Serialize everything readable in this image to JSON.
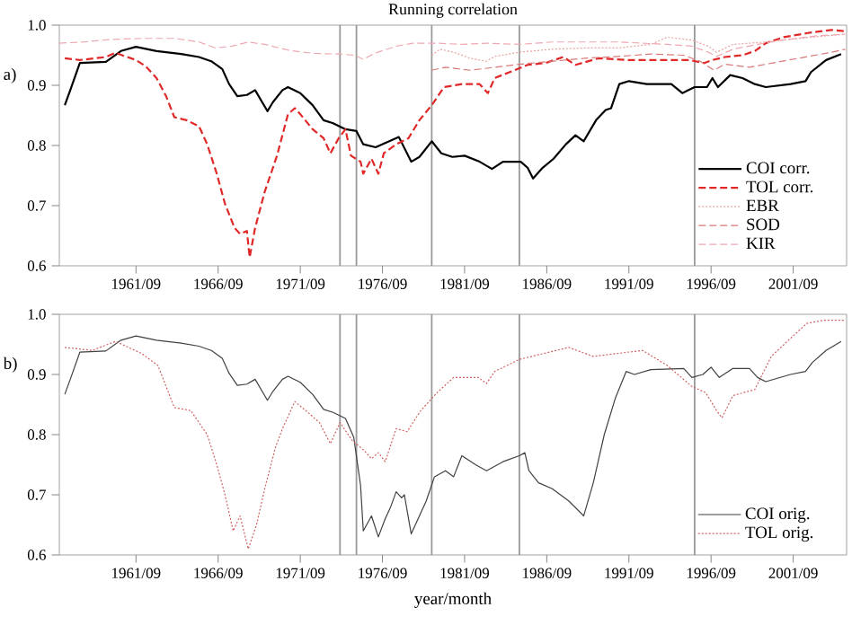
{
  "chart_data": [
    {
      "type": "line",
      "title": "Running correlation",
      "annotations": [
        "a)"
      ],
      "xlim": [
        "1957-01",
        "2004-12"
      ],
      "ylim": [
        0.6,
        1.0
      ],
      "xticks": [
        {
          "value": "1961-09",
          "label": "1961/09"
        },
        {
          "value": "1966-09",
          "label": "1966/09"
        },
        {
          "value": "1971-09",
          "label": "1971/09"
        },
        {
          "value": "1976-09",
          "label": "1976/09"
        },
        {
          "value": "1981-09",
          "label": "1981/09"
        },
        {
          "value": "1986-09",
          "label": "1986/09"
        },
        {
          "value": "1991-09",
          "label": "1991/09"
        },
        {
          "value": "1996-09",
          "label": "1996/09"
        },
        {
          "value": "2001-09",
          "label": "2001/09"
        }
      ],
      "yticks": [
        0.6,
        0.7,
        0.8,
        0.9,
        {
          "value": 1.0,
          "label": "1.0"
        }
      ],
      "legend": "bottom right",
      "ref_lines": [
        {
          "axis": "x",
          "value": "1974-02",
          "color": "#999999"
        },
        {
          "axis": "x",
          "value": "1975-02",
          "color": "#999999"
        },
        {
          "axis": "x",
          "value": "1979-09",
          "color": "#999999"
        },
        {
          "axis": "x",
          "value": "1985-01",
          "color": "#999999"
        },
        {
          "axis": "x",
          "value": "1995-09",
          "color": "#999999"
        }
      ],
      "series": [
        {
          "name": "COI corr.",
          "color": "#000000",
          "line_style": "solid",
          "x": [
            "1957-05",
            "1957-09",
            "1958-04",
            "1959-11",
            "1960-10",
            "1961-09",
            "1962-12",
            "1964-06",
            "1965-07",
            "1966-04",
            "1966-12",
            "1967-05",
            "1967-11",
            "1968-06",
            "1968-12",
            "1969-09",
            "1970-01",
            "1970-08",
            "1970-12",
            "1971-09",
            "1972-06",
            "1973-02",
            "1973-09",
            "1974-06",
            "1975-02",
            "1975-07",
            "1976-04",
            "1977-02",
            "1977-09",
            "1978-06",
            "1978-12",
            "1979-09",
            "1980-04",
            "1980-12",
            "1981-09",
            "1982-08",
            "1983-05",
            "1984-01",
            "1985-02",
            "1985-07",
            "1985-11",
            "1986-06",
            "1987-02",
            "1987-11",
            "1988-06",
            "1988-12",
            "1989-09",
            "1990-04",
            "1990-08",
            "1991-02",
            "1991-09",
            "1992-10",
            "1994-04",
            "1994-12",
            "1995-09",
            "1996-06",
            "1996-10",
            "1997-02",
            "1997-11",
            "1998-08",
            "1999-05",
            "2000-01",
            "2001-07",
            "2002-06",
            "2002-10",
            "2003-09",
            "2004-08"
          ],
          "values": [
            0.867,
            0.892,
            0.937,
            0.939,
            0.957,
            0.964,
            0.957,
            0.952,
            0.947,
            0.94,
            0.927,
            0.902,
            0.882,
            0.884,
            0.892,
            0.857,
            0.872,
            0.892,
            0.897,
            0.887,
            0.867,
            0.842,
            0.837,
            0.827,
            0.824,
            0.802,
            0.797,
            0.807,
            0.814,
            0.773,
            0.781,
            0.807,
            0.787,
            0.781,
            0.783,
            0.773,
            0.761,
            0.773,
            0.773,
            0.763,
            0.745,
            0.763,
            0.778,
            0.802,
            0.817,
            0.807,
            0.842,
            0.859,
            0.862,
            0.902,
            0.907,
            0.902,
            0.902,
            0.887,
            0.897,
            0.897,
            0.912,
            0.897,
            0.917,
            0.912,
            0.902,
            0.897,
            0.902,
            0.907,
            0.922,
            0.942,
            0.952
          ]
        },
        {
          "name": "TOL corr.",
          "color": "#e02828",
          "line_style": "dashed",
          "x": [
            "1957-05",
            "1958-04",
            "1959-11",
            "1960-06",
            "1961-09",
            "1962-04",
            "1962-12",
            "1963-07",
            "1964-01",
            "1964-10",
            "1965-07",
            "1966-01",
            "1966-08",
            "1967-02",
            "1967-09",
            "1968-01",
            "1968-06",
            "1968-08",
            "1968-12",
            "1969-07",
            "1970-04",
            "1970-12",
            "1971-05",
            "1971-09",
            "1972-06",
            "1973-02",
            "1973-07",
            "1974-01",
            "1974-06",
            "1974-10",
            "1975-05",
            "1975-07",
            "1976-01",
            "1976-06",
            "1976-10",
            "1977-07",
            "1978-04",
            "1978-12",
            "1979-09",
            "1980-06",
            "1981-07",
            "1982-08",
            "1983-02",
            "1983-07",
            "1984-06",
            "1985-07",
            "1986-08",
            "1987-09",
            "1988-06",
            "1989-11",
            "1991-09",
            "1993-07",
            "1995-05",
            "1996-04",
            "1996-10",
            "1997-07",
            "1998-08",
            "1999-05",
            "2000-01",
            "2001-02",
            "2002-08",
            "2004-01",
            "2004-10"
          ],
          "values": [
            0.945,
            0.942,
            0.947,
            0.954,
            0.942,
            0.932,
            0.912,
            0.882,
            0.847,
            0.842,
            0.832,
            0.802,
            0.753,
            0.703,
            0.663,
            0.653,
            0.658,
            0.614,
            0.663,
            0.723,
            0.783,
            0.852,
            0.862,
            0.852,
            0.827,
            0.812,
            0.787,
            0.812,
            0.827,
            0.783,
            0.773,
            0.753,
            0.778,
            0.753,
            0.787,
            0.802,
            0.812,
            0.842,
            0.867,
            0.897,
            0.902,
            0.902,
            0.887,
            0.912,
            0.922,
            0.934,
            0.937,
            0.947,
            0.934,
            0.945,
            0.942,
            0.942,
            0.942,
            0.937,
            0.942,
            0.947,
            0.95,
            0.957,
            0.97,
            0.98,
            0.987,
            0.992,
            0.99
          ]
        },
        {
          "name": "EBR",
          "color": "#e8a0a0",
          "line_style": "dotted",
          "x": [
            "1979-09",
            "1980-03",
            "1981-01",
            "1982-01",
            "1983-01",
            "1983-07",
            "1985-01",
            "1987-01",
            "1989-01",
            "1991-01",
            "1993-01",
            "1994-01",
            "1995-07",
            "1996-07",
            "1997-01",
            "1998-01",
            "2000-01",
            "2002-01",
            "2004-11"
          ],
          "values": [
            0.95,
            0.96,
            0.955,
            0.945,
            0.94,
            0.948,
            0.955,
            0.96,
            0.962,
            0.962,
            0.968,
            0.98,
            0.975,
            0.965,
            0.955,
            0.968,
            0.972,
            0.978,
            0.985
          ]
        },
        {
          "name": "SOD",
          "color": "#d87878",
          "line_style": "dashed",
          "x": [
            "1979-09",
            "1980-07",
            "1982-01",
            "1983-07",
            "1985-01",
            "1987-01",
            "1989-01",
            "1991-01",
            "1993-01",
            "1995-01",
            "1996-01",
            "1996-11",
            "1997-07",
            "1999-01",
            "2000-01",
            "2002-01",
            "2004-01",
            "2004-11"
          ],
          "values": [
            0.925,
            0.93,
            0.925,
            0.93,
            0.935,
            0.94,
            0.945,
            0.948,
            0.952,
            0.95,
            0.94,
            0.925,
            0.935,
            0.93,
            0.935,
            0.945,
            0.955,
            0.96
          ]
        },
        {
          "name": "KIR",
          "color": "#f0a8b0",
          "line_style": "dashed",
          "x": [
            "1957-01",
            "1958-07",
            "1960-01",
            "1962-01",
            "1964-01",
            "1965-07",
            "1966-07",
            "1967-07",
            "1968-07",
            "1969-07",
            "1971-01",
            "1972-07",
            "1974-01",
            "1975-01",
            "1975-07",
            "1976-03",
            "1977-07",
            "1978-07",
            "1980-01",
            "1981-07",
            "1983-01",
            "1985-01",
            "1987-01",
            "1989-01",
            "1991-01",
            "1992-07",
            "1994-01",
            "1995-07",
            "1996-07",
            "1997-01",
            "1998-01",
            "1999-07",
            "2001-01",
            "2003-01",
            "2004-11"
          ],
          "values": [
            0.97,
            0.972,
            0.976,
            0.978,
            0.978,
            0.972,
            0.962,
            0.965,
            0.972,
            0.968,
            0.958,
            0.953,
            0.952,
            0.95,
            0.943,
            0.953,
            0.965,
            0.97,
            0.97,
            0.968,
            0.97,
            0.968,
            0.972,
            0.972,
            0.972,
            0.97,
            0.968,
            0.965,
            0.955,
            0.948,
            0.96,
            0.968,
            0.975,
            0.982,
            0.985
          ]
        }
      ]
    },
    {
      "type": "line",
      "xlabel": "year/month",
      "annotations": [
        "b)"
      ],
      "xlim": [
        "1957-01",
        "2004-12"
      ],
      "ylim": [
        0.6,
        1.0
      ],
      "xticks": [
        {
          "value": "1961-09",
          "label": "1961/09"
        },
        {
          "value": "1966-09",
          "label": "1966/09"
        },
        {
          "value": "1971-09",
          "label": "1971/09"
        },
        {
          "value": "1976-09",
          "label": "1976/09"
        },
        {
          "value": "1981-09",
          "label": "1981/09"
        },
        {
          "value": "1986-09",
          "label": "1986/09"
        },
        {
          "value": "1991-09",
          "label": "1991/09"
        },
        {
          "value": "1996-09",
          "label": "1996/09"
        },
        {
          "value": "2001-09",
          "label": "2001/09"
        }
      ],
      "yticks": [
        0.6,
        0.7,
        0.8,
        0.9,
        {
          "value": 1.0,
          "label": "1.0"
        }
      ],
      "legend": "bottom right",
      "ref_lines": [
        {
          "axis": "x",
          "value": "1974-02",
          "color": "#999999"
        },
        {
          "axis": "x",
          "value": "1975-02",
          "color": "#999999"
        },
        {
          "axis": "x",
          "value": "1979-09",
          "color": "#999999"
        },
        {
          "axis": "x",
          "value": "1985-01",
          "color": "#999999"
        },
        {
          "axis": "x",
          "value": "1995-09",
          "color": "#999999"
        }
      ],
      "series": [
        {
          "name": "COI orig.",
          "color": "#404040",
          "line_style": "solid",
          "x": [
            "1957-05",
            "1957-09",
            "1958-04",
            "1959-11",
            "1960-10",
            "1961-09",
            "1962-12",
            "1964-06",
            "1965-07",
            "1966-04",
            "1966-12",
            "1967-05",
            "1967-11",
            "1968-06",
            "1968-12",
            "1969-09",
            "1970-01",
            "1970-08",
            "1970-12",
            "1971-09",
            "1972-06",
            "1973-02",
            "1973-09",
            "1974-06",
            "1974-12",
            "1975-05",
            "1975-07",
            "1976-01",
            "1976-06",
            "1976-11",
            "1977-03",
            "1977-07",
            "1977-11",
            "1978-01",
            "1978-06",
            "1978-12",
            "1979-05",
            "1979-11",
            "1980-07",
            "1981-01",
            "1981-07",
            "1982-05",
            "1983-01",
            "1984-01",
            "1985-01",
            "1985-05",
            "1985-08",
            "1986-03",
            "1987-01",
            "1988-01",
            "1988-12",
            "1989-07",
            "1990-03",
            "1990-11",
            "1991-07",
            "1992-01",
            "1993-01",
            "1995-01",
            "1995-07",
            "1996-03",
            "1996-09",
            "1997-03",
            "1998-01",
            "1999-01",
            "1999-07",
            "2000-01",
            "2001-07",
            "2002-06",
            "2002-11",
            "2003-09",
            "2004-08"
          ],
          "values": [
            0.867,
            0.892,
            0.937,
            0.939,
            0.957,
            0.964,
            0.957,
            0.952,
            0.947,
            0.94,
            0.927,
            0.902,
            0.882,
            0.884,
            0.892,
            0.857,
            0.872,
            0.892,
            0.897,
            0.887,
            0.867,
            0.842,
            0.837,
            0.827,
            0.796,
            0.716,
            0.64,
            0.665,
            0.63,
            0.66,
            0.68,
            0.705,
            0.695,
            0.7,
            0.635,
            0.665,
            0.69,
            0.73,
            0.74,
            0.73,
            0.765,
            0.75,
            0.74,
            0.755,
            0.765,
            0.77,
            0.74,
            0.72,
            0.71,
            0.69,
            0.665,
            0.72,
            0.8,
            0.86,
            0.905,
            0.9,
            0.908,
            0.91,
            0.895,
            0.9,
            0.912,
            0.895,
            0.91,
            0.91,
            0.895,
            0.888,
            0.9,
            0.905,
            0.92,
            0.94,
            0.955
          ]
        },
        {
          "name": "TOL orig.",
          "color": "#d06060",
          "line_style": "dotted",
          "x": [
            "1957-05",
            "1959-01",
            "1960-06",
            "1962-01",
            "1963-01",
            "1964-01",
            "1965-01",
            "1966-01",
            "1966-08",
            "1967-02",
            "1967-08",
            "1968-01",
            "1968-07",
            "1969-01",
            "1969-07",
            "1970-03",
            "1970-08",
            "1971-05",
            "1972-01",
            "1972-11",
            "1973-07",
            "1974-02",
            "1974-11",
            "1975-07",
            "1976-01",
            "1976-06",
            "1976-11",
            "1977-07",
            "1978-03",
            "1979-01",
            "1980-01",
            "1981-01",
            "1982-07",
            "1983-01",
            "1983-07",
            "1985-01",
            "1986-07",
            "1988-01",
            "1989-07",
            "1991-01",
            "1992-07",
            "1994-01",
            "1995-07",
            "1996-05",
            "1997-01",
            "1997-05",
            "1998-01",
            "1999-05",
            "2000-05",
            "2001-07",
            "2002-07",
            "2003-07",
            "2004-11"
          ],
          "values": [
            0.945,
            0.94,
            0.955,
            0.935,
            0.915,
            0.845,
            0.84,
            0.8,
            0.75,
            0.7,
            0.64,
            0.665,
            0.61,
            0.65,
            0.71,
            0.78,
            0.81,
            0.855,
            0.84,
            0.82,
            0.785,
            0.82,
            0.79,
            0.775,
            0.76,
            0.77,
            0.755,
            0.81,
            0.805,
            0.84,
            0.87,
            0.895,
            0.895,
            0.885,
            0.905,
            0.925,
            0.935,
            0.945,
            0.93,
            0.935,
            0.94,
            0.915,
            0.88,
            0.87,
            0.84,
            0.828,
            0.865,
            0.875,
            0.93,
            0.96,
            0.985,
            0.99,
            0.99
          ]
        }
      ]
    }
  ]
}
